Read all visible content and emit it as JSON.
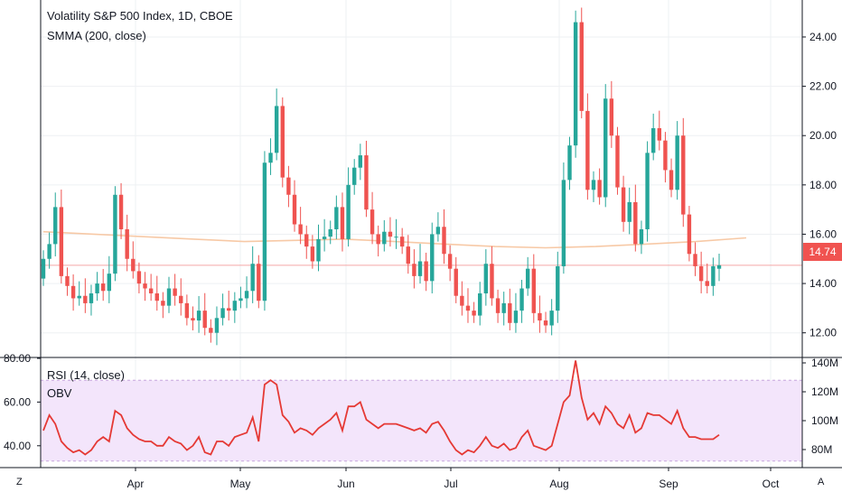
{
  "header": {
    "title": "Volatility S&P 500 Index, 1D, CBOE",
    "indicator": "SMMA (200, close)",
    "rsi_label": "RSI (14, close)",
    "obv_label": "OBV"
  },
  "last_price": "14.74",
  "corner_left": "Z",
  "corner_right": "A",
  "colors": {
    "up": "#26a69a",
    "down": "#ef5350",
    "smma": "#f7c9a6",
    "rsi": "#e53935",
    "rsi_band": "#f3e5fb",
    "grid": "#eef0f3",
    "axis": "#131722"
  },
  "chart_data": [
    {
      "type": "candlestick",
      "title": "Volatility S&P 500 Index, 1D, CBOE",
      "ylim": [
        11,
        25.5
      ],
      "y_ticks": [
        "12.00",
        "14.00",
        "16.00",
        "18.00",
        "20.00",
        "22.00",
        "24.00"
      ],
      "x_ticks": [
        "Apr",
        "May",
        "Jun",
        "Jul",
        "Aug",
        "Sep",
        "Oct"
      ],
      "series": [
        {
          "name": "SMMA (200, close)",
          "type": "line",
          "values": [
            16.1,
            16.0,
            15.9,
            15.8,
            15.7,
            15.75,
            15.8,
            15.7,
            15.6,
            15.5,
            15.45,
            15.5,
            15.6,
            15.7,
            15.85
          ]
        }
      ],
      "close": [
        15.0,
        15.6,
        17.1,
        14.3,
        13.9,
        13.4,
        13.5,
        13.2,
        13.6,
        14.0,
        13.7,
        14.4,
        17.6,
        16.2,
        15.0,
        14.5,
        14.0,
        13.8,
        13.6,
        13.3,
        13.1,
        13.8,
        13.5,
        13.2,
        12.6,
        12.5,
        12.9,
        12.2,
        12.0,
        12.6,
        13.0,
        12.9,
        13.3,
        13.4,
        13.7,
        14.8,
        13.3,
        18.9,
        19.3,
        21.2,
        18.3,
        17.6,
        16.4,
        16.0,
        15.5,
        14.9,
        15.8,
        15.9,
        16.2,
        17.1,
        15.8,
        18.0,
        18.7,
        19.2,
        17.0,
        16.0,
        15.6,
        16.1,
        15.9,
        15.9,
        15.5,
        14.8,
        14.3,
        14.9,
        14.1,
        16.0,
        16.3,
        15.2,
        14.6,
        13.5,
        13.1,
        12.9,
        12.7,
        13.6,
        14.8,
        13.4,
        12.8,
        13.2,
        12.4,
        12.9,
        13.8,
        14.6,
        12.8,
        12.5,
        12.3,
        12.9,
        14.7,
        18.2,
        19.6,
        24.6,
        21.0,
        17.8,
        18.2,
        17.5,
        21.5,
        20.0,
        17.9,
        16.5,
        17.3,
        15.6,
        16.2,
        19.3,
        20.3,
        19.8,
        18.6,
        17.8,
        20.0,
        16.8,
        15.2,
        14.7,
        14.1,
        13.9,
        14.7,
        14.74
      ],
      "open": [
        14.2,
        15.0,
        15.6,
        17.1,
        14.3,
        13.9,
        13.4,
        13.5,
        13.2,
        13.6,
        14.0,
        13.7,
        14.4,
        17.6,
        16.2,
        15.0,
        14.5,
        14.0,
        13.8,
        13.6,
        13.3,
        13.1,
        13.8,
        13.5,
        13.2,
        12.6,
        12.5,
        12.9,
        12.2,
        12.0,
        12.6,
        13.0,
        12.9,
        13.3,
        13.4,
        13.7,
        14.8,
        13.3,
        18.9,
        19.3,
        21.2,
        18.3,
        17.6,
        16.4,
        16.0,
        15.5,
        14.9,
        15.8,
        15.9,
        16.2,
        17.1,
        15.8,
        18.0,
        18.7,
        19.2,
        17.0,
        16.0,
        15.6,
        16.1,
        15.9,
        15.9,
        15.5,
        14.8,
        14.3,
        14.9,
        14.1,
        16.0,
        16.3,
        15.2,
        14.6,
        13.5,
        13.1,
        12.9,
        12.7,
        13.6,
        14.8,
        13.4,
        12.8,
        13.2,
        12.4,
        12.9,
        13.8,
        14.6,
        12.8,
        12.5,
        12.3,
        12.9,
        14.7,
        18.2,
        19.6,
        24.6,
        21.0,
        17.8,
        18.2,
        17.5,
        21.5,
        20.0,
        17.9,
        16.5,
        17.3,
        15.6,
        16.2,
        19.3,
        20.3,
        19.8,
        18.6,
        17.8,
        20.0,
        16.8,
        15.2,
        14.7,
        14.1,
        13.9,
        14.6
      ]
    },
    {
      "type": "line",
      "title": "RSI (14, close)",
      "ylim": [
        30,
        80
      ],
      "y_ticks": [
        "40.00",
        "60.00",
        "80.00"
      ],
      "band": [
        33,
        70
      ],
      "secondary_series": "OBV",
      "secondary_ticks": [
        "80M",
        "100M",
        "120M",
        "140M"
      ],
      "values": [
        47,
        54,
        50,
        42,
        39,
        37,
        38,
        36,
        38,
        42,
        44,
        42,
        56,
        54,
        48,
        45,
        43,
        42,
        42,
        40,
        40,
        44,
        42,
        41,
        38,
        40,
        44,
        37,
        36,
        42,
        42,
        40,
        44,
        45,
        46,
        53,
        42,
        68,
        70,
        68,
        54,
        51,
        46,
        48,
        47,
        45,
        48,
        50,
        52,
        55,
        47,
        58,
        58,
        60,
        52,
        50,
        48,
        50,
        50,
        50,
        49,
        48,
        47,
        48,
        46,
        50,
        51,
        47,
        42,
        38,
        36,
        38,
        37,
        40,
        44,
        40,
        39,
        41,
        38,
        39,
        44,
        47,
        40,
        39,
        38,
        40,
        50,
        60,
        63,
        79,
        62,
        52,
        55,
        50,
        58,
        55,
        50,
        48,
        54,
        46,
        48,
        55,
        54,
        54,
        52,
        50,
        56,
        48,
        44,
        44,
        43,
        43,
        43,
        45
      ]
    }
  ]
}
